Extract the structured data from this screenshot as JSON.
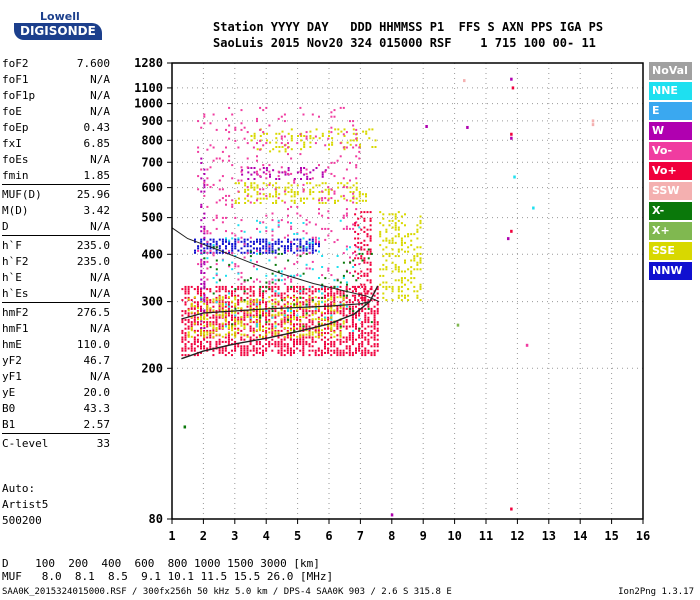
{
  "logo": {
    "line1": "Lowell",
    "line2": "DIGISONDE"
  },
  "header": {
    "line1": "Station YYYY DAY   DDD HHMMSS P1  FFS S AXN PPS IGA PS",
    "line2": "SaoLuis 2015 Nov20 324 015000 RSF    1 715 100 00- 11"
  },
  "params": [
    {
      "name": "foF2",
      "value": "7.600"
    },
    {
      "name": "foF1",
      "value": "N/A"
    },
    {
      "name": "foF1p",
      "value": "N/A"
    },
    {
      "name": "foE",
      "value": "N/A"
    },
    {
      "name": "foEp",
      "value": "0.43"
    },
    {
      "name": "fxI",
      "value": "6.85"
    },
    {
      "name": "foEs",
      "value": "N/A"
    },
    {
      "name": "fmin",
      "value": "1.85"
    },
    {
      "name": "MUF(D)",
      "value": "25.96"
    },
    {
      "name": "M(D)",
      "value": "3.42"
    },
    {
      "name": "D",
      "value": "N/A"
    },
    {
      "name": "h`F",
      "value": "235.0"
    },
    {
      "name": "h`F2",
      "value": "235.0"
    },
    {
      "name": "h`E",
      "value": "N/A"
    },
    {
      "name": "h`Es",
      "value": "N/A"
    },
    {
      "name": "hmF2",
      "value": "276.5"
    },
    {
      "name": "hmF1",
      "value": "N/A"
    },
    {
      "name": "hmE",
      "value": "110.0"
    },
    {
      "name": "yF2",
      "value": "46.7"
    },
    {
      "name": "yF1",
      "value": "N/A"
    },
    {
      "name": "yE",
      "value": "20.0"
    },
    {
      "name": "B0",
      "value": "43.3"
    },
    {
      "name": "B1",
      "value": "2.57"
    },
    {
      "name": "C-level",
      "value": "33"
    }
  ],
  "auto": {
    "line1": "Auto:",
    "line2": "Artist5",
    "line3": "500200"
  },
  "legend": [
    {
      "label": "NoVal",
      "color": "#a0a0a0"
    },
    {
      "label": "NNE",
      "color": "#1ee0f0"
    },
    {
      "label": "E",
      "color": "#3aa8f0"
    },
    {
      "label": "W",
      "color": "#b000b0"
    },
    {
      "label": "Vo-",
      "color": "#f03ca0"
    },
    {
      "label": "Vo+",
      "color": "#f0003c"
    },
    {
      "label": "SSW",
      "color": "#f4b0b0"
    },
    {
      "label": "X-",
      "color": "#0a780a"
    },
    {
      "label": "X+",
      "color": "#80b850"
    },
    {
      "label": "SSE",
      "color": "#d8d800"
    },
    {
      "label": "NNW",
      "color": "#1010d0"
    }
  ],
  "chart_data": {
    "type": "scatter",
    "title": "",
    "xlabel": "",
    "ylabel": "",
    "xlim": [
      1,
      16
    ],
    "ylim": [
      80,
      1280
    ],
    "yscale": "log",
    "x_ticks": [
      "1",
      "2",
      "3",
      "4",
      "5",
      "6",
      "7",
      "8",
      "9",
      "10",
      "11",
      "12",
      "13",
      "14",
      "15",
      "16"
    ],
    "y_ticks": [
      {
        "value": 80,
        "label": "80"
      },
      {
        "value": 200,
        "label": "200"
      },
      {
        "value": 300,
        "label": "300"
      },
      {
        "value": 400,
        "label": "400"
      },
      {
        "value": 500,
        "label": "500"
      },
      {
        "value": 600,
        "label": "600"
      },
      {
        "value": 700,
        "label": "700"
      },
      {
        "value": 800,
        "label": "800"
      },
      {
        "value": 900,
        "label": "900"
      },
      {
        "value": 1000,
        "label": "1000"
      },
      {
        "value": 1100,
        "label": "1100"
      },
      {
        "value": 1280,
        "label": "1280"
      }
    ],
    "grid": true,
    "echo_regions": [
      {
        "color": "#f0003c",
        "x": [
          1.3,
          7.6
        ],
        "y": [
          215,
          330
        ],
        "density": 0.55
      },
      {
        "color": "#d8d800",
        "x": [
          1.5,
          6.5
        ],
        "y": [
          240,
          310
        ],
        "density": 0.35
      },
      {
        "color": "#1010d0",
        "x": [
          1.7,
          5.7
        ],
        "y": [
          400,
          440
        ],
        "density": 0.6
      },
      {
        "color": "#d8d800",
        "x": [
          3.0,
          7.2
        ],
        "y": [
          540,
          620
        ],
        "density": 0.3
      },
      {
        "color": "#d8d800",
        "x": [
          3.5,
          7.5
        ],
        "y": [
          740,
          860
        ],
        "density": 0.18
      },
      {
        "color": "#b000b0",
        "x": [
          3.2,
          6.0
        ],
        "y": [
          630,
          680
        ],
        "density": 0.25
      },
      {
        "color": "#f03ca0",
        "x": [
          1.8,
          7.0
        ],
        "y": [
          330,
          980
        ],
        "density": 0.08
      },
      {
        "color": "#f0003c",
        "x": [
          6.8,
          7.4
        ],
        "y": [
          300,
          520
        ],
        "density": 0.35
      },
      {
        "color": "#d8d800",
        "x": [
          7.6,
          9.0
        ],
        "y": [
          300,
          520
        ],
        "density": 0.3
      },
      {
        "color": "#0a780a",
        "x": [
          2.0,
          7.4
        ],
        "y": [
          250,
          420
        ],
        "density": 0.04
      },
      {
        "color": "#1ee0f0",
        "x": [
          1.8,
          7.0
        ],
        "y": [
          250,
          500
        ],
        "density": 0.03
      },
      {
        "color": "#b000b0",
        "x": [
          1.9,
          2.1
        ],
        "y": [
          250,
          720
        ],
        "density": 0.4
      }
    ],
    "isolated_points": [
      {
        "x": 11.8,
        "y": 1160,
        "color": "#b000b0"
      },
      {
        "x": 11.85,
        "y": 1100,
        "color": "#f0003c"
      },
      {
        "x": 10.3,
        "y": 1150,
        "color": "#f4b0b0"
      },
      {
        "x": 11.8,
        "y": 830,
        "color": "#f0003c"
      },
      {
        "x": 11.8,
        "y": 810,
        "color": "#b000b0"
      },
      {
        "x": 10.4,
        "y": 865,
        "color": "#b000b0"
      },
      {
        "x": 9.1,
        "y": 870,
        "color": "#b000b0"
      },
      {
        "x": 11.9,
        "y": 640,
        "color": "#1ee0f0"
      },
      {
        "x": 12.5,
        "y": 530,
        "color": "#1ee0f0"
      },
      {
        "x": 11.8,
        "y": 460,
        "color": "#f0003c"
      },
      {
        "x": 11.7,
        "y": 440,
        "color": "#b000b0"
      },
      {
        "x": 11.8,
        "y": 85,
        "color": "#f0003c"
      },
      {
        "x": 8.0,
        "y": 82,
        "color": "#b000b0"
      },
      {
        "x": 1.4,
        "y": 140,
        "color": "#0a780a"
      },
      {
        "x": 10.1,
        "y": 260,
        "color": "#80b850"
      },
      {
        "x": 12.3,
        "y": 230,
        "color": "#f03ca0"
      },
      {
        "x": 14.4,
        "y": 900,
        "color": "#f4b0b0"
      },
      {
        "x": 14.4,
        "y": 880,
        "color": "#f4b0b0"
      }
    ],
    "profile_curve": [
      [
        1.3,
        212
      ],
      [
        2.0,
        222
      ],
      [
        3.0,
        232
      ],
      [
        4.0,
        240
      ],
      [
        5.0,
        250
      ],
      [
        6.0,
        262
      ],
      [
        6.8,
        278
      ],
      [
        7.3,
        300
      ],
      [
        7.55,
        330
      ]
    ],
    "profile_curve_upper": [
      [
        1.3,
        270
      ],
      [
        2.0,
        280
      ],
      [
        4.0,
        287
      ],
      [
        6.0,
        292
      ],
      [
        7.0,
        296
      ],
      [
        7.3,
        300
      ]
    ],
    "fof2_trace": [
      [
        1.0,
        470
      ],
      [
        1.5,
        440
      ],
      [
        2.5,
        410
      ],
      [
        3.5,
        380
      ],
      [
        4.5,
        355
      ],
      [
        5.5,
        335
      ],
      [
        6.5,
        320
      ],
      [
        7.2,
        310
      ],
      [
        7.6,
        300
      ]
    ]
  },
  "dmuf": {
    "line1": "D    100  200  400  600  800 1000 1500 3000 [km]",
    "line2": "MUF   8.0  8.1  8.5  9.1 10.1 11.5 15.5 26.0 [MHz]"
  },
  "footer": {
    "left": "SAA0K_2015324015000.RSF / 300fx256h 50 kHz 5.0 km / DPS-4 SAA0K 903 / 2.6 S 315.8 E",
    "right": "Ion2Png 1.3.17"
  }
}
